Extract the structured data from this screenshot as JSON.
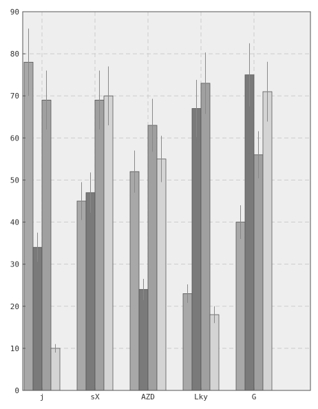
{
  "chart_data": {
    "type": "bar",
    "title": "",
    "xlabel": "",
    "ylabel": "",
    "categories": [
      "j",
      "sX",
      "AZD",
      "Lky",
      "G"
    ],
    "ylim": [
      0,
      90
    ],
    "yticks": [
      0,
      10,
      20,
      30,
      40,
      50,
      60,
      70,
      80,
      90
    ],
    "grid": true,
    "legend": "none",
    "series": [
      {
        "color": "#a8a8a8",
        "values": [
          78,
          45,
          52,
          23,
          40
        ],
        "errors": [
          8,
          4.5,
          5,
          2.2,
          4
        ]
      },
      {
        "color": "#7a7a7a",
        "values": [
          34,
          47,
          24,
          67,
          75
        ],
        "errors": [
          3.5,
          4.8,
          2.5,
          6.8,
          7.5
        ]
      },
      {
        "color": "#a0a0a0",
        "values": [
          69,
          69,
          63,
          73,
          56
        ],
        "errors": [
          7,
          7,
          6.3,
          7.3,
          5.6
        ]
      },
      {
        "color": "#d4d4d4",
        "values": [
          10,
          70,
          55,
          18,
          71
        ],
        "errors": [
          1,
          7,
          5.5,
          2,
          7.1
        ]
      }
    ]
  }
}
